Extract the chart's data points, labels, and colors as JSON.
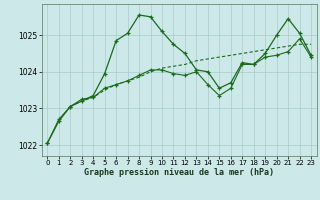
{
  "title": "Graphe pression niveau de la mer (hPa)",
  "background_color": "#cce8e8",
  "line_color": "#1a6b1a",
  "ylim": [
    1021.7,
    1025.85
  ],
  "yticks": [
    1022,
    1023,
    1024,
    1025
  ],
  "xlim": [
    -0.5,
    23.5
  ],
  "xticks": [
    0,
    1,
    2,
    3,
    4,
    5,
    6,
    7,
    8,
    9,
    10,
    11,
    12,
    13,
    14,
    15,
    16,
    17,
    18,
    19,
    20,
    21,
    22,
    23
  ],
  "series1": {
    "x": [
      0,
      1,
      2,
      3,
      4,
      5,
      6,
      7,
      8,
      9,
      10,
      11,
      12,
      13,
      14,
      15,
      16,
      17,
      18,
      19,
      20,
      21,
      22,
      23
    ],
    "y": [
      1022.05,
      1022.65,
      1023.05,
      1023.2,
      1023.35,
      1023.95,
      1024.85,
      1025.05,
      1025.55,
      1025.5,
      1025.1,
      1024.75,
      1024.5,
      1024.05,
      1024.0,
      1023.55,
      1023.7,
      1024.25,
      1024.2,
      1024.5,
      1025.0,
      1025.45,
      1025.05,
      1024.45
    ]
  },
  "series2": {
    "x": [
      2,
      3,
      4,
      5,
      6,
      7,
      8,
      9,
      10,
      11,
      12,
      13,
      14,
      15,
      16,
      17,
      18,
      19,
      20,
      21,
      22,
      23
    ],
    "y": [
      1023.05,
      1023.2,
      1023.3,
      1023.5,
      1023.65,
      1023.75,
      1023.85,
      1024.0,
      1024.1,
      1024.15,
      1024.2,
      1024.3,
      1024.35,
      1024.4,
      1024.45,
      1024.5,
      1024.55,
      1024.6,
      1024.65,
      1024.7,
      1024.75,
      1024.75
    ]
  },
  "series3": {
    "x": [
      0,
      1,
      2,
      3,
      4,
      5,
      6,
      7,
      8,
      9,
      10,
      11,
      12,
      13,
      14,
      15,
      16,
      17,
      18,
      19,
      20,
      21,
      22,
      23
    ],
    "y": [
      1022.05,
      1022.7,
      1023.05,
      1023.25,
      1023.3,
      1023.55,
      1023.65,
      1023.75,
      1023.9,
      1024.05,
      1024.05,
      1023.95,
      1023.9,
      1024.0,
      1023.65,
      1023.35,
      1023.55,
      1024.2,
      1024.2,
      1024.4,
      1024.45,
      1024.55,
      1024.9,
      1024.4
    ]
  }
}
